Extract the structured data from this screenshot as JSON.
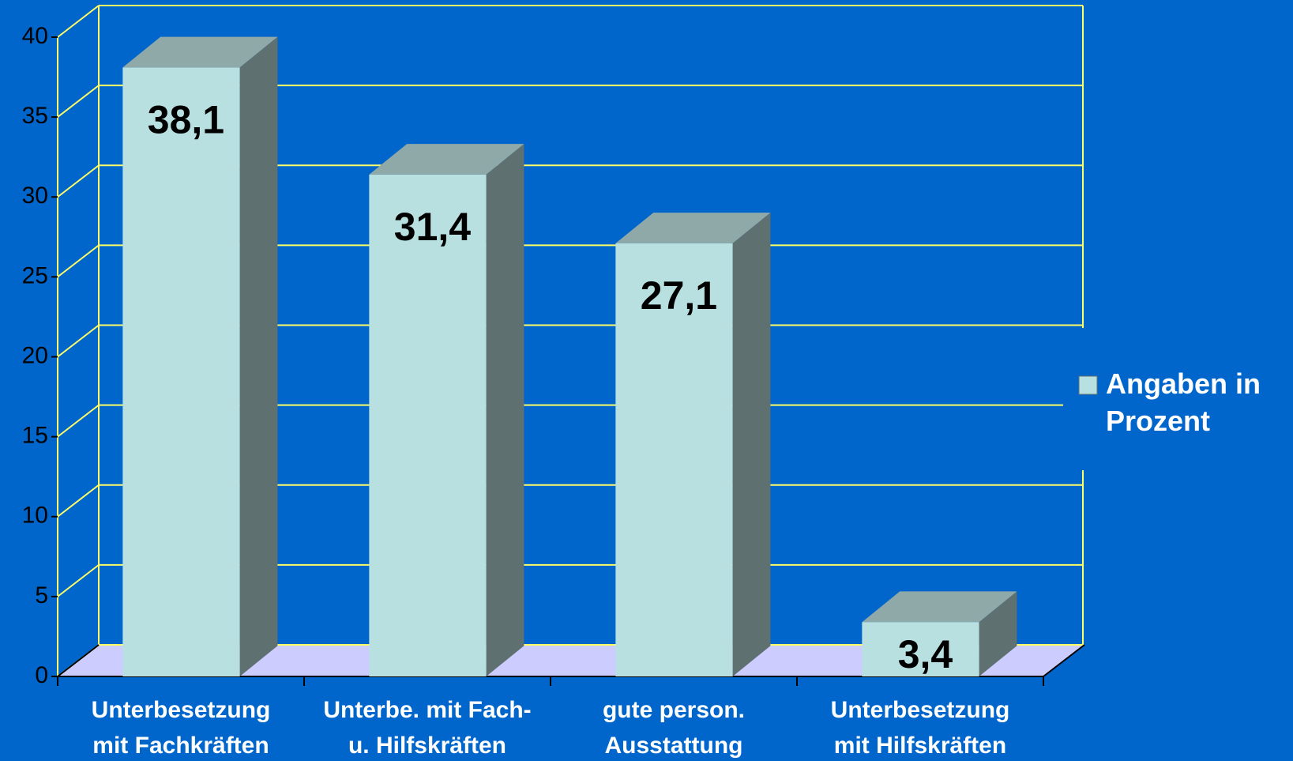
{
  "chart_data": {
    "type": "bar3d",
    "categories": [
      "Unterbesetzung mit Fachkräften",
      "Unterbe. mit Fach- u. Hilfskräften",
      "gute person. Ausstattung",
      "Unterbesetzung mit Hilfskräften"
    ],
    "series": [
      {
        "name": "Angaben in Prozent",
        "color": "#b9e0e0",
        "values": [
          38.1,
          31.4,
          27.1,
          3.4
        ],
        "value_labels": [
          "38,1",
          "31,4",
          "27,1",
          "3,4"
        ]
      }
    ],
    "ylim": [
      0,
      40
    ],
    "yticks": [
      0,
      5,
      10,
      15,
      20,
      25,
      30,
      35,
      40
    ],
    "grid": true,
    "legend": "right"
  }
}
